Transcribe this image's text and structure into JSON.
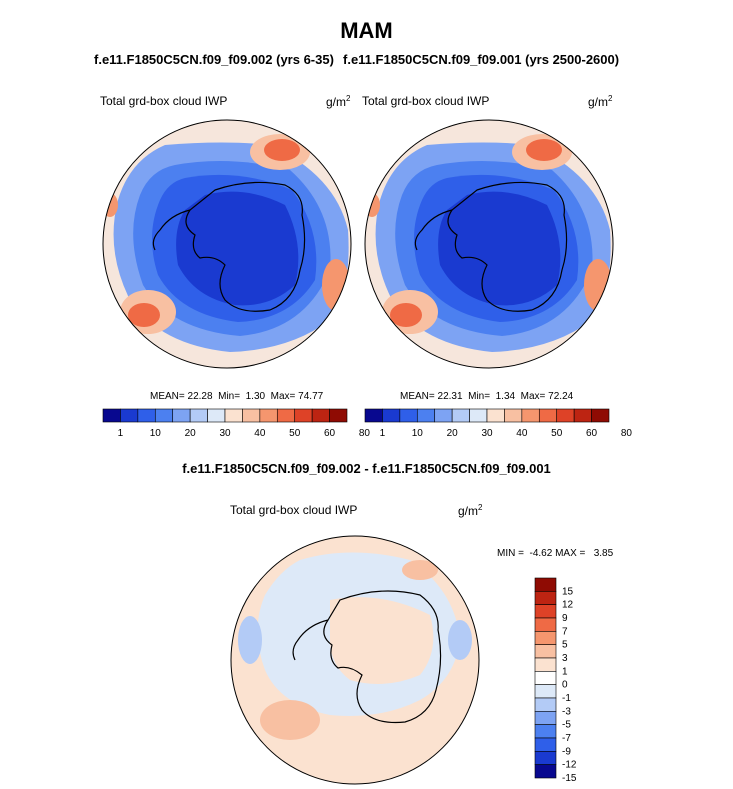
{
  "title": "MAM",
  "panels": [
    {
      "case_label": "f.e11.F1850C5CN.f09_f09.002 (yrs 6-35)",
      "variable": "Total grd-box cloud IWP",
      "units": "g/m",
      "units_exp": "2",
      "mean_label": "MEAN=",
      "mean": "22.28",
      "min_label": "Min=",
      "min": "1.30",
      "max_label": "Max=",
      "max": "74.77"
    },
    {
      "case_label": "f.e11.F1850C5CN.f09_f09.001 (yrs 2500-2600)",
      "variable": "Total grd-box cloud IWP",
      "units": "g/m",
      "units_exp": "2",
      "mean_label": "MEAN=",
      "mean": "22.31",
      "min_label": "Min=",
      "min": "1.34",
      "max_label": "Max=",
      "max": "72.24"
    }
  ],
  "diff": {
    "title": "f.e11.F1850C5CN.f09_f09.002 - f.e11.F1850C5CN.f09_f09.001",
    "variable": "Total grd-box cloud IWP",
    "units": "g/m",
    "units_exp": "2",
    "minmax": "MIN =  -4.62 MAX =   3.85"
  },
  "chart_data": [
    {
      "type": "heatmap",
      "title": "Total grd-box cloud IWP",
      "units": "g/m2",
      "projection": "south polar stereographic",
      "stats": {
        "mean": 22.28,
        "min": 1.3,
        "max": 74.77
      },
      "colorbar_ticks": [
        "1",
        "10",
        "20",
        "30",
        "40",
        "50",
        "60",
        "80"
      ],
      "colorbar_colors": [
        "#08088f",
        "#1a3ad0",
        "#2f5fe9",
        "#4c80f0",
        "#7da3f3",
        "#b3cbf6",
        "#dde9f8",
        "#fbe2d0",
        "#f8c0a2",
        "#f5966e",
        "#ef6a45",
        "#de4227",
        "#bd2412",
        "#8f0b03"
      ]
    },
    {
      "type": "heatmap",
      "title": "Total grd-box cloud IWP",
      "units": "g/m2",
      "projection": "south polar stereographic",
      "stats": {
        "mean": 22.31,
        "min": 1.34,
        "max": 72.24
      },
      "colorbar_ticks": [
        "1",
        "10",
        "20",
        "30",
        "40",
        "50",
        "60",
        "80"
      ],
      "colorbar_colors": [
        "#08088f",
        "#1a3ad0",
        "#2f5fe9",
        "#4c80f0",
        "#7da3f3",
        "#b3cbf6",
        "#dde9f8",
        "#fbe2d0",
        "#f8c0a2",
        "#f5966e",
        "#ef6a45",
        "#de4227",
        "#bd2412",
        "#8f0b03"
      ]
    },
    {
      "type": "heatmap",
      "title": "Total grd-box cloud IWP (difference)",
      "units": "g/m2",
      "projection": "south polar stereographic",
      "stats": {
        "min": -4.62,
        "max": 3.85
      },
      "colorbar_ticks": [
        "15",
        "12",
        "9",
        "7",
        "5",
        "3",
        "1",
        "0",
        "-1",
        "-3",
        "-5",
        "-7",
        "-9",
        "-12",
        "-15"
      ],
      "colorbar_colors": [
        "#8f0b03",
        "#bd2412",
        "#de4227",
        "#ef6a45",
        "#f5966e",
        "#f8c0a2",
        "#fbe2d0",
        "#ffffff",
        "#dde9f8",
        "#b3cbf6",
        "#7da3f3",
        "#4c80f0",
        "#2f5fe9",
        "#1a3ad0",
        "#08088f"
      ]
    }
  ]
}
